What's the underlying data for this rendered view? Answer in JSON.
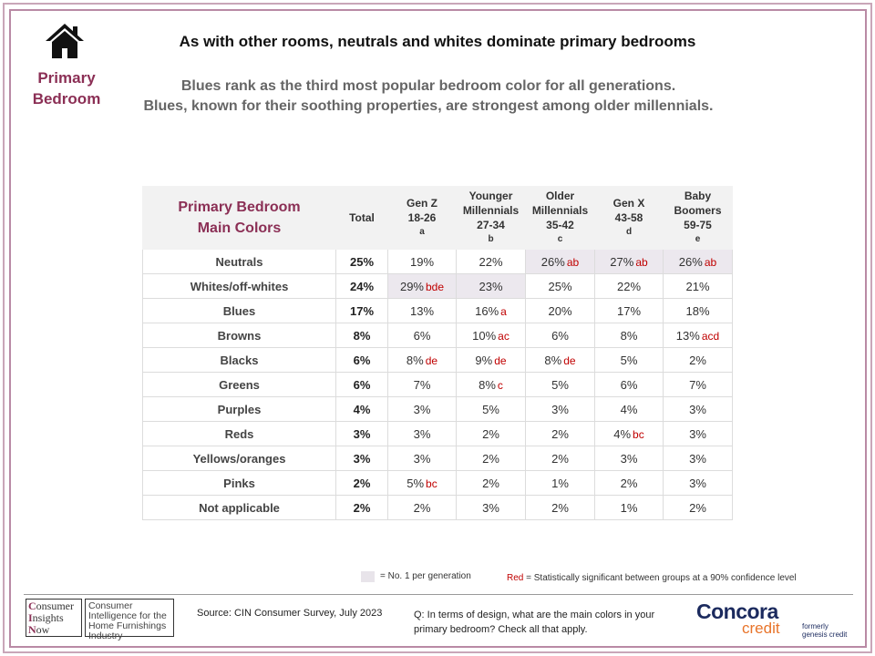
{
  "header": {
    "section_label": "Primary Bedroom",
    "title": "As with other rooms, neutrals and whites dominate primary bedrooms",
    "subtitle_line1": "Blues rank as the third most popular bedroom color for all generations.",
    "subtitle_line2": "Blues, known for their soothing properties, are strongest among older millennials."
  },
  "table": {
    "row_header": [
      "Primary Bedroom",
      "Main Colors"
    ],
    "columns": [
      {
        "lines": [
          "Total"
        ],
        "letter": ""
      },
      {
        "lines": [
          "Gen Z",
          "18-26"
        ],
        "letter": "a"
      },
      {
        "lines": [
          "Younger",
          "Millennials",
          "27-34"
        ],
        "letter": "b"
      },
      {
        "lines": [
          "Older",
          "Millennials",
          "35-42"
        ],
        "letter": "c"
      },
      {
        "lines": [
          "Gen X",
          "43-58"
        ],
        "letter": "d"
      },
      {
        "lines": [
          "Baby",
          "Boomers",
          "59-75"
        ],
        "letter": "e"
      }
    ],
    "rows": [
      {
        "label": "Neutrals",
        "cells": [
          {
            "v": "25%",
            "sig": "",
            "hi": false
          },
          {
            "v": "19%",
            "sig": "",
            "hi": false
          },
          {
            "v": "22%",
            "sig": "",
            "hi": false
          },
          {
            "v": "26%",
            "sig": "ab",
            "hi": true
          },
          {
            "v": "27%",
            "sig": "ab",
            "hi": true
          },
          {
            "v": "26%",
            "sig": "ab",
            "hi": true
          }
        ]
      },
      {
        "label": "Whites/off-whites",
        "cells": [
          {
            "v": "24%",
            "sig": "",
            "hi": false
          },
          {
            "v": "29%",
            "sig": "bde",
            "hi": true
          },
          {
            "v": "23%",
            "sig": "",
            "hi": true
          },
          {
            "v": "25%",
            "sig": "",
            "hi": false
          },
          {
            "v": "22%",
            "sig": "",
            "hi": false
          },
          {
            "v": "21%",
            "sig": "",
            "hi": false
          }
        ]
      },
      {
        "label": "Blues",
        "cells": [
          {
            "v": "17%",
            "sig": "",
            "hi": false
          },
          {
            "v": "13%",
            "sig": "",
            "hi": false
          },
          {
            "v": "16%",
            "sig": "a",
            "hi": false
          },
          {
            "v": "20%",
            "sig": "",
            "hi": false
          },
          {
            "v": "17%",
            "sig": "",
            "hi": false
          },
          {
            "v": "18%",
            "sig": "",
            "hi": false
          }
        ]
      },
      {
        "label": "Browns",
        "cells": [
          {
            "v": "8%",
            "sig": "",
            "hi": false
          },
          {
            "v": "6%",
            "sig": "",
            "hi": false
          },
          {
            "v": "10%",
            "sig": "ac",
            "hi": false
          },
          {
            "v": "6%",
            "sig": "",
            "hi": false
          },
          {
            "v": "8%",
            "sig": "",
            "hi": false
          },
          {
            "v": "13%",
            "sig": "acd",
            "hi": false
          }
        ]
      },
      {
        "label": "Blacks",
        "cells": [
          {
            "v": "6%",
            "sig": "",
            "hi": false
          },
          {
            "v": "8%",
            "sig": "de",
            "hi": false
          },
          {
            "v": "9%",
            "sig": "de",
            "hi": false
          },
          {
            "v": "8%",
            "sig": "de",
            "hi": false
          },
          {
            "v": "5%",
            "sig": "",
            "hi": false
          },
          {
            "v": "2%",
            "sig": "",
            "hi": false
          }
        ]
      },
      {
        "label": "Greens",
        "cells": [
          {
            "v": "6%",
            "sig": "",
            "hi": false
          },
          {
            "v": "7%",
            "sig": "",
            "hi": false
          },
          {
            "v": "8%",
            "sig": "c",
            "hi": false
          },
          {
            "v": "5%",
            "sig": "",
            "hi": false
          },
          {
            "v": "6%",
            "sig": "",
            "hi": false
          },
          {
            "v": "7%",
            "sig": "",
            "hi": false
          }
        ]
      },
      {
        "label": "Purples",
        "cells": [
          {
            "v": "4%",
            "sig": "",
            "hi": false
          },
          {
            "v": "3%",
            "sig": "",
            "hi": false
          },
          {
            "v": "5%",
            "sig": "",
            "hi": false
          },
          {
            "v": "3%",
            "sig": "",
            "hi": false
          },
          {
            "v": "4%",
            "sig": "",
            "hi": false
          },
          {
            "v": "3%",
            "sig": "",
            "hi": false
          }
        ]
      },
      {
        "label": "Reds",
        "cells": [
          {
            "v": "3%",
            "sig": "",
            "hi": false
          },
          {
            "v": "3%",
            "sig": "",
            "hi": false
          },
          {
            "v": "2%",
            "sig": "",
            "hi": false
          },
          {
            "v": "2%",
            "sig": "",
            "hi": false
          },
          {
            "v": "4%",
            "sig": "bc",
            "hi": false
          },
          {
            "v": "3%",
            "sig": "",
            "hi": false
          }
        ]
      },
      {
        "label": "Yellows/oranges",
        "cells": [
          {
            "v": "3%",
            "sig": "",
            "hi": false
          },
          {
            "v": "3%",
            "sig": "",
            "hi": false
          },
          {
            "v": "2%",
            "sig": "",
            "hi": false
          },
          {
            "v": "2%",
            "sig": "",
            "hi": false
          },
          {
            "v": "3%",
            "sig": "",
            "hi": false
          },
          {
            "v": "3%",
            "sig": "",
            "hi": false
          }
        ]
      },
      {
        "label": "Pinks",
        "cells": [
          {
            "v": "2%",
            "sig": "",
            "hi": false
          },
          {
            "v": "5%",
            "sig": "bc",
            "hi": false
          },
          {
            "v": "2%",
            "sig": "",
            "hi": false
          },
          {
            "v": "1%",
            "sig": "",
            "hi": false
          },
          {
            "v": "2%",
            "sig": "",
            "hi": false
          },
          {
            "v": "3%",
            "sig": "",
            "hi": false
          }
        ]
      },
      {
        "label": "Not applicable",
        "cells": [
          {
            "v": "2%",
            "sig": "",
            "hi": false
          },
          {
            "v": "2%",
            "sig": "",
            "hi": false
          },
          {
            "v": "3%",
            "sig": "",
            "hi": false
          },
          {
            "v": "2%",
            "sig": "",
            "hi": false
          },
          {
            "v": "1%",
            "sig": "",
            "hi": false
          },
          {
            "v": "2%",
            "sig": "",
            "hi": false
          }
        ]
      }
    ]
  },
  "legend": {
    "no1_text": "= No. 1 per generation",
    "red_word": "Red",
    "red_text": " = Statistically significant between groups at a 90% confidence level"
  },
  "footer": {
    "cin_logo_lines": [
      "Consumer",
      "Insights",
      "Now"
    ],
    "cin_tagline": "Consumer Intelligence for the Home Furnishings Industry",
    "source": "Source:  CIN Consumer Survey, July 2023",
    "question": "Q:  In terms of design, what are the main colors in your primary bedroom? Check all that apply.",
    "concora_name": "Concora",
    "concora_credit": "credit",
    "formerly_line1": "formerly",
    "formerly_line2": "genesis credit"
  },
  "colors": {
    "accent": "#8b2f55",
    "border": "#b98aa5",
    "highlight": "#ece8ee",
    "significance": "#c00000",
    "concora_navy": "#1b2a5e",
    "concora_orange": "#e8742a"
  }
}
